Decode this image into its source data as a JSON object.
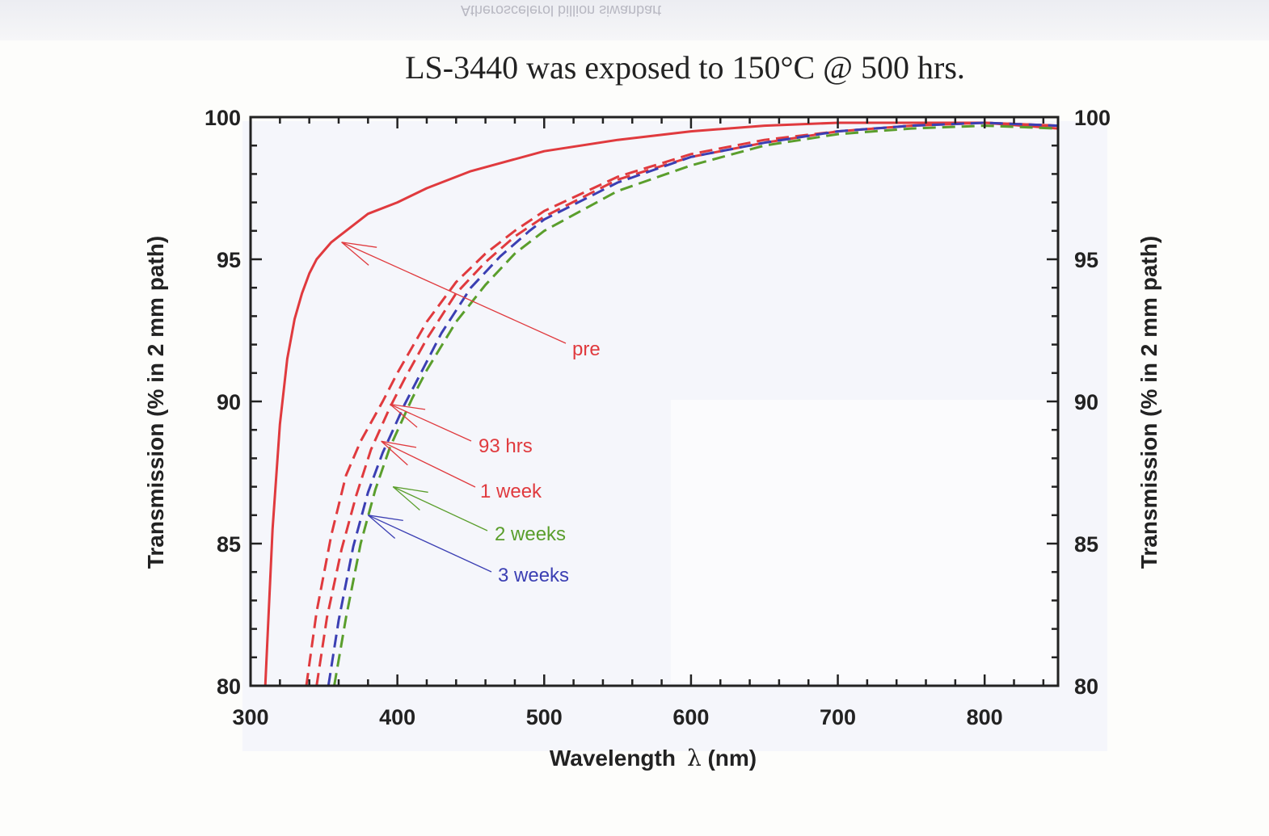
{
  "bleed_text": "Atheroscelerol billion siwanbart",
  "chart_data": {
    "type": "line",
    "title": "LS-3440 was exposed to 150°C @ 500 hrs.",
    "xlabel": "Wavelength",
    "xlabel_symbol": "λ",
    "xlabel_unit": "(nm)",
    "ylabel": "Transmission (% in 2 mm path)",
    "xlim": [
      300,
      850
    ],
    "ylim": [
      80,
      100
    ],
    "xticks": [
      "300",
      "400",
      "500",
      "600",
      "700",
      "800"
    ],
    "yticks": [
      "80",
      "85",
      "90",
      "95",
      "100"
    ],
    "grid": false,
    "series": [
      {
        "name": "pre",
        "color": "#e03a3e",
        "dash": "solid",
        "x": [
          310,
          315,
          320,
          325,
          330,
          335,
          340,
          345,
          350,
          355,
          360,
          370,
          380,
          400,
          420,
          450,
          500,
          550,
          600,
          650,
          700,
          750,
          800,
          850
        ],
        "y": [
          80.0,
          85.5,
          89.2,
          91.5,
          92.9,
          93.8,
          94.5,
          95.0,
          95.3,
          95.6,
          95.8,
          96.2,
          96.6,
          97.0,
          97.5,
          98.1,
          98.8,
          99.2,
          99.5,
          99.7,
          99.8,
          99.8,
          99.8,
          99.6
        ]
      },
      {
        "name": "93 hrs",
        "color": "#e03a3e",
        "dash": "dashed",
        "x": [
          338,
          345,
          355,
          365,
          375,
          390,
          400,
          420,
          440,
          460,
          480,
          500,
          550,
          600,
          650,
          700,
          750,
          800,
          850
        ],
        "y": [
          80.0,
          82.6,
          85.3,
          87.4,
          88.6,
          90.0,
          91.0,
          92.8,
          94.2,
          95.2,
          96.0,
          96.7,
          97.9,
          98.7,
          99.2,
          99.5,
          99.7,
          99.8,
          99.7
        ]
      },
      {
        "name": "1 week",
        "color": "#e03a3e",
        "dash": "dashed",
        "x": [
          345,
          352,
          362,
          372,
          382,
          395,
          405,
          420,
          440,
          460,
          480,
          500,
          550,
          600,
          650,
          700,
          750,
          800,
          850
        ],
        "y": [
          80.0,
          82.4,
          84.8,
          86.7,
          88.3,
          89.8,
          90.8,
          92.2,
          93.8,
          94.9,
          95.8,
          96.5,
          97.8,
          98.6,
          99.1,
          99.5,
          99.7,
          99.8,
          99.7
        ]
      },
      {
        "name": "2 weeks",
        "color": "#5a9e2c",
        "dash": "dashed",
        "x": [
          357,
          365,
          375,
          385,
          395,
          410,
          420,
          440,
          460,
          480,
          500,
          550,
          600,
          650,
          700,
          750,
          800,
          850
        ],
        "y": [
          80.0,
          82.4,
          85.0,
          86.9,
          88.4,
          90.1,
          91.1,
          92.8,
          94.1,
          95.2,
          96.0,
          97.4,
          98.3,
          99.0,
          99.4,
          99.6,
          99.7,
          99.6
        ]
      },
      {
        "name": "3 weeks",
        "color": "#3b3fb3",
        "dash": "dashed",
        "x": [
          353,
          360,
          370,
          380,
          390,
          405,
          415,
          430,
          450,
          470,
          490,
          500,
          550,
          600,
          650,
          700,
          750,
          800,
          850
        ],
        "y": [
          80.0,
          82.3,
          84.9,
          86.8,
          88.2,
          89.9,
          90.9,
          92.4,
          94.0,
          95.1,
          96.0,
          96.4,
          97.7,
          98.6,
          99.1,
          99.5,
          99.7,
          99.8,
          99.7
        ]
      }
    ],
    "annotations": [
      {
        "text": "pre",
        "color": "#e03a3e",
        "label_x": 0.0,
        "label_y": 0.0,
        "arrow_to": [
          362,
          95.6
        ]
      },
      {
        "text": "93 hrs",
        "color": "#e03a3e",
        "arrow_to": [
          395,
          89.9
        ]
      },
      {
        "text": "1 week",
        "color": "#e03a3e",
        "arrow_to": [
          389,
          88.6
        ]
      },
      {
        "text": "2 weeks",
        "color": "#5a9e2c",
        "arrow_to": [
          397,
          87.0
        ]
      },
      {
        "text": "3 weeks",
        "color": "#3b3fb3",
        "arrow_to": [
          380,
          86.0
        ]
      }
    ]
  }
}
